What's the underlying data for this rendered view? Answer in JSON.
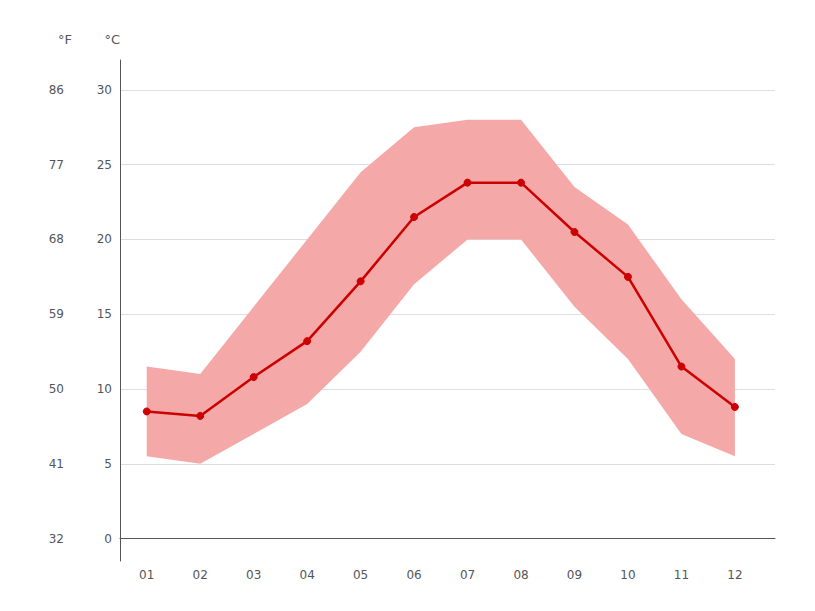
{
  "chart_data": {
    "type": "line",
    "ylabel": "°C",
    "y2label": "°F",
    "x": [
      1,
      2,
      3,
      4,
      5,
      6,
      7,
      8,
      9,
      10,
      11,
      12
    ],
    "xlim": [
      0.5,
      12.75
    ],
    "xticks": [
      {
        "value": 1,
        "label": "01"
      },
      {
        "value": 2,
        "label": "02"
      },
      {
        "value": 3,
        "label": "03"
      },
      {
        "value": 4,
        "label": "04"
      },
      {
        "value": 5,
        "label": "05"
      },
      {
        "value": 6,
        "label": "06"
      },
      {
        "value": 7,
        "label": "07"
      },
      {
        "value": 8,
        "label": "08"
      },
      {
        "value": 9,
        "label": "09"
      },
      {
        "value": 10,
        "label": "10"
      },
      {
        "value": 11,
        "label": "11"
      },
      {
        "value": 12,
        "label": "12"
      }
    ],
    "ylim": [
      -1.5,
      32
    ],
    "yticks": [
      0,
      5,
      10,
      15,
      20,
      25,
      30
    ],
    "y2lim": [
      29.3,
      89.6
    ],
    "y2ticks": [
      32,
      41,
      50,
      59,
      68,
      77,
      86
    ],
    "grid": true,
    "series": [
      {
        "type": "band",
        "color": "#f4a8a8",
        "lower": [
          5.5,
          5.0,
          7.0,
          9.0,
          12.5,
          17.0,
          20.0,
          20.0,
          15.5,
          12.0,
          7.0,
          5.5
        ],
        "upper": [
          11.5,
          11.0,
          15.5,
          20.0,
          24.5,
          27.5,
          28.0,
          28.0,
          23.5,
          21.0,
          16.0,
          12.0
        ]
      },
      {
        "type": "line",
        "color": "#cc0000",
        "marker": "circle",
        "values": [
          8.5,
          8.2,
          10.8,
          13.2,
          17.2,
          21.5,
          23.8,
          23.8,
          20.5,
          17.5,
          11.5,
          8.8
        ]
      }
    ]
  }
}
